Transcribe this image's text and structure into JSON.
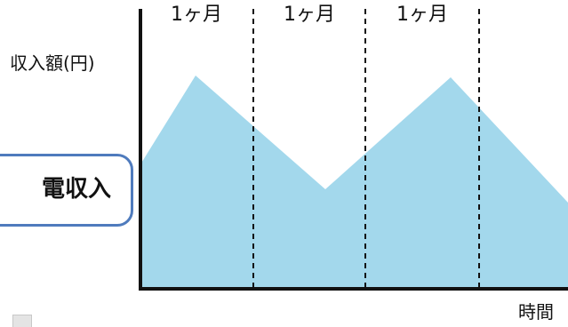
{
  "diagram": {
    "y_axis_label": "収入額(円)",
    "x_axis_label": "時間",
    "period_labels": [
      "1ヶ月",
      "1ヶ月",
      "1ヶ月"
    ],
    "callout_text": "電収入",
    "fill_color": "#a3d8ec",
    "callout_border_color": "#4f7bbd"
  }
}
